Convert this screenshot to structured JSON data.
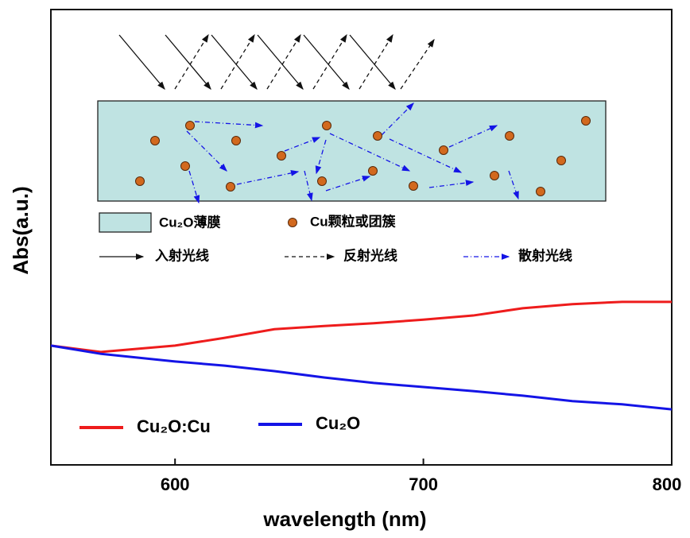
{
  "chart_data": {
    "type": "line",
    "xlabel": "wavelength (nm)",
    "ylabel": "Abs(a.u.)",
    "x": [
      550,
      570,
      600,
      620,
      640,
      660,
      680,
      700,
      720,
      740,
      760,
      780,
      800
    ],
    "series": [
      {
        "name": "Cu₂O:Cu",
        "color": "#ee1c1c",
        "values": [
          0.262,
          0.248,
          0.262,
          0.279,
          0.298,
          0.305,
          0.311,
          0.319,
          0.328,
          0.344,
          0.353,
          0.358,
          0.358
        ]
      },
      {
        "name": "Cu₂O",
        "color": "#1414e6",
        "values": [
          0.262,
          0.244,
          0.227,
          0.218,
          0.206,
          0.192,
          0.18,
          0.171,
          0.162,
          0.152,
          0.14,
          0.133,
          0.122
        ]
      }
    ],
    "xlim": [
      550,
      800
    ],
    "xticks": [
      600,
      700,
      800
    ],
    "ylim": [
      0,
      1
    ],
    "annotations": [
      "Cu₂O薄膜",
      "Cu颗粒或团簇",
      "入射光线",
      "反射光线",
      "散射光线"
    ]
  }
}
